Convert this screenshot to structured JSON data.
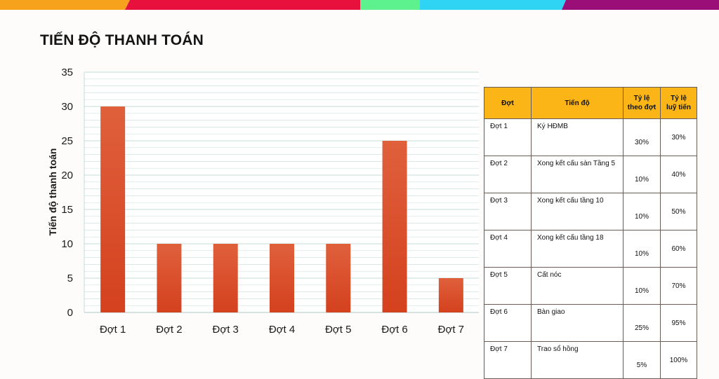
{
  "title": "TIẾN ĐỘ THANH TOÁN",
  "colors": {
    "bar": "#d4411e",
    "bar_top": "#e0603c",
    "grid": "#cfe3df",
    "table_header": "#fbb516",
    "top_stripes": [
      "#f7a21c",
      "#e8103d",
      "#5ef28f",
      "#2fd3f4",
      "#9a0e78"
    ]
  },
  "chart_data": {
    "type": "bar",
    "categories": [
      "Đợt 1",
      "Đợt 2",
      "Đợt 3",
      "Đợt 4",
      "Đợt 5",
      "Đợt 6",
      "Đợt 7"
    ],
    "values": [
      30,
      10,
      10,
      10,
      10,
      25,
      5
    ],
    "xlabel": "",
    "ylabel": "Tiến độ thanh toán",
    "ylim": [
      0,
      35
    ],
    "yticks": [
      0,
      5,
      10,
      15,
      20,
      25,
      30,
      35
    ],
    "grid": true
  },
  "table": {
    "headers": [
      "Đợt",
      "Tiến độ",
      "Tỷ lệ theo đợt",
      "Tỷ lệ luỹ tiến"
    ],
    "rows": [
      {
        "dot": "Đợt 1",
        "tien_do": "Ký HĐMB",
        "ty_le": "30%",
        "luy_tien": "30%"
      },
      {
        "dot": "Đợt 2",
        "tien_do": "Xong kết cấu sàn Tầng 5",
        "ty_le": "10%",
        "luy_tien": "40%"
      },
      {
        "dot": "Đợt 3",
        "tien_do": "Xong kết cấu tầng 10",
        "ty_le": "10%",
        "luy_tien": "50%"
      },
      {
        "dot": "Đợt 4",
        "tien_do": "Xong kết cấu tầng 18",
        "ty_le": "10%",
        "luy_tien": "60%"
      },
      {
        "dot": "Đợt 5",
        "tien_do": "Cất nóc",
        "ty_le": "10%",
        "luy_tien": "70%"
      },
      {
        "dot": "Đợt 6",
        "tien_do": "Bàn giao",
        "ty_le": "25%",
        "luy_tien": "95%"
      },
      {
        "dot": "Đợt 7",
        "tien_do": "Trao sổ hồng",
        "ty_le": "5%",
        "luy_tien": "100%"
      }
    ]
  }
}
